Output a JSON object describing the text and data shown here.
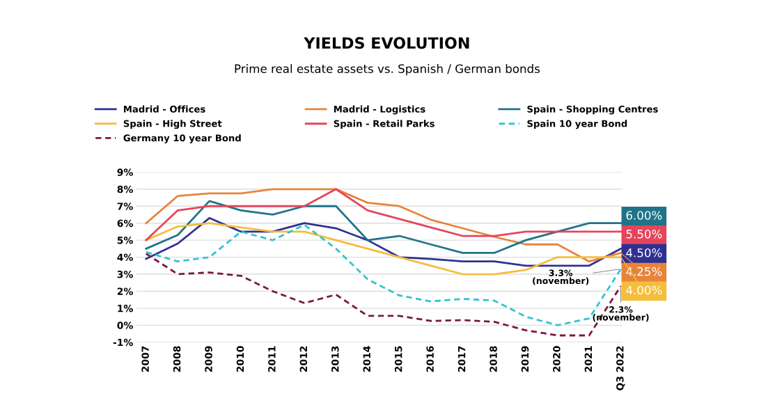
{
  "chart_data": {
    "type": "line",
    "title": "YIELDS EVOLUTION",
    "subtitle": "Prime real estate assets vs. Spanish / German bonds",
    "categories": [
      "2007",
      "2008",
      "2009",
      "2010",
      "2011",
      "2012",
      "2013",
      "2014",
      "2015",
      "2016",
      "2017",
      "2018",
      "2019",
      "2020",
      "2021",
      "Q3 2022"
    ],
    "series": [
      {
        "name": "Madrid - Offices",
        "color": "#2e3192",
        "line_style": "solid",
        "values": [
          3.9,
          4.8,
          6.3,
          5.5,
          5.5,
          6.0,
          5.7,
          5.0,
          4.0,
          3.9,
          3.75,
          3.75,
          3.5,
          3.5,
          3.5,
          4.5
        ],
        "value_labels": [
          null,
          null,
          null,
          null,
          null,
          null,
          null,
          null,
          null,
          null,
          null,
          null,
          null,
          null,
          null,
          "4.50%"
        ]
      },
      {
        "name": "Madrid - Logistics",
        "color": "#e8843a",
        "line_style": "solid",
        "values": [
          6.0,
          7.6,
          7.75,
          7.75,
          8.0,
          8.0,
          8.0,
          7.2,
          7.0,
          6.2,
          5.7,
          5.2,
          4.75,
          4.75,
          3.75,
          4.25
        ],
        "value_labels": [
          null,
          null,
          null,
          null,
          null,
          null,
          null,
          null,
          null,
          null,
          null,
          null,
          null,
          null,
          null,
          "4.25%"
        ]
      },
      {
        "name": "Spain - Shopping Centres",
        "color": "#1f7489",
        "line_style": "solid",
        "values": [
          4.5,
          5.3,
          7.3,
          6.75,
          6.5,
          7.0,
          7.0,
          5.0,
          5.25,
          4.75,
          4.25,
          4.25,
          5.0,
          5.5,
          6.0,
          6.0
        ],
        "value_labels": [
          null,
          null,
          null,
          null,
          null,
          null,
          null,
          null,
          null,
          null,
          null,
          null,
          null,
          null,
          null,
          "6.00%"
        ]
      },
      {
        "name": "Spain - High Street",
        "color": "#f5bd3c",
        "line_style": "solid",
        "values": [
          5.0,
          5.8,
          6.0,
          5.75,
          5.5,
          5.5,
          5.0,
          4.5,
          4.0,
          3.5,
          3.0,
          3.0,
          3.25,
          4.0,
          4.0,
          4.0
        ],
        "value_labels": [
          null,
          null,
          null,
          null,
          null,
          null,
          null,
          null,
          null,
          null,
          null,
          null,
          null,
          null,
          null,
          "4.00%"
        ]
      },
      {
        "name": "Spain - Retail Parks",
        "color": "#e5455a",
        "line_style": "solid",
        "values": [
          5.0,
          6.75,
          7.0,
          7.0,
          7.0,
          7.0,
          8.0,
          6.75,
          6.25,
          5.75,
          5.25,
          5.25,
          5.5,
          5.5,
          5.5,
          5.5
        ],
        "value_labels": [
          null,
          null,
          null,
          null,
          null,
          null,
          null,
          null,
          null,
          null,
          null,
          null,
          null,
          null,
          null,
          "5.50%"
        ]
      },
      {
        "name": "Spain 10 year Bond",
        "color": "#31c3d3",
        "line_style": "dashed",
        "values": [
          4.3,
          3.75,
          4.0,
          5.5,
          5.0,
          5.9,
          4.5,
          2.7,
          1.75,
          1.4,
          1.55,
          1.45,
          0.5,
          0.0,
          0.4,
          3.3
        ]
      },
      {
        "name": "Germany 10 year Bond",
        "color": "#7a1a3f",
        "line_style": "dashed",
        "values": [
          4.2,
          3.0,
          3.1,
          2.9,
          2.0,
          1.3,
          1.8,
          0.55,
          0.55,
          0.25,
          0.3,
          0.2,
          -0.3,
          -0.6,
          -0.6,
          2.3
        ]
      }
    ],
    "annotations": [
      {
        "text": "3.3%\n(november)",
        "x": "Q3 2022",
        "y": 3.3
      },
      {
        "text": "2.3%\n(november)",
        "x": "Q3 2022",
        "y": 2.3
      }
    ],
    "ylim": [
      -1,
      9
    ],
    "yticks": [
      {
        "value": -1,
        "label": "-1%"
      },
      {
        "value": 0,
        "label": "0%"
      },
      {
        "value": 1,
        "label": "1%"
      },
      {
        "value": 2,
        "label": "2%"
      },
      {
        "value": 3,
        "label": "3%"
      },
      {
        "value": 4,
        "label": "4%"
      },
      {
        "value": 5,
        "label": "5%"
      },
      {
        "value": 6,
        "label": "6%"
      },
      {
        "value": 7,
        "label": "7%"
      },
      {
        "value": 8,
        "label": "8%"
      },
      {
        "value": 9,
        "label": "9%"
      }
    ],
    "grid": "y",
    "legend": "top",
    "marker": "none"
  }
}
